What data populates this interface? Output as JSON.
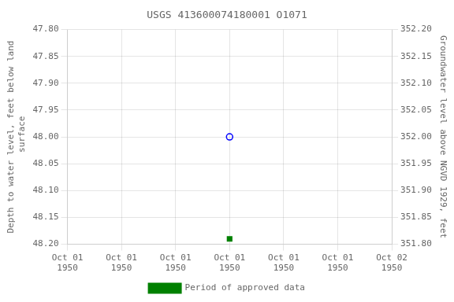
{
  "chart_data": {
    "type": "scatter",
    "title": "USGS 413600074180001 O1071",
    "categories": [
      "Oct 01\n1950",
      "Oct 01\n1950",
      "Oct 01\n1950",
      "Oct 01\n1950",
      "Oct 01\n1950",
      "Oct 01\n1950",
      "Oct 02\n1950"
    ],
    "series": [
      {
        "color": "blue",
        "marker": "circle_open",
        "values": [
          null,
          null,
          null,
          48.0,
          null,
          null,
          null
        ]
      },
      {
        "name": "Period of approved data",
        "color": "green",
        "marker": "square",
        "values": [
          null,
          null,
          null,
          48.19,
          null,
          null,
          null
        ]
      }
    ],
    "ylabel": "Depth to water level, feet below land\n surface",
    "y2label": "Groundwater level above NGVD 1929, feet",
    "ylim": [
      48.2,
      47.8
    ],
    "yticks": [
      {
        "value": 47.8,
        "label": "47.80"
      },
      {
        "value": 47.85,
        "label": "47.85"
      },
      {
        "value": 47.9,
        "label": "47.90"
      },
      {
        "value": 47.95,
        "label": "47.95"
      },
      {
        "value": 48.0,
        "label": "48.00"
      },
      {
        "value": 48.05,
        "label": "48.05"
      },
      {
        "value": 48.1,
        "label": "48.10"
      },
      {
        "value": 48.15,
        "label": "48.15"
      },
      {
        "value": 48.2,
        "label": "48.20"
      }
    ],
    "y2lim": [
      351.8,
      352.2
    ],
    "y2ticks": [
      {
        "value": 352.2,
        "label": "352.20"
      },
      {
        "value": 352.15,
        "label": "352.15"
      },
      {
        "value": 352.1,
        "label": "352.10"
      },
      {
        "value": 352.05,
        "label": "352.05"
      },
      {
        "value": 352.0,
        "label": "352.00"
      },
      {
        "value": 351.95,
        "label": "351.95"
      },
      {
        "value": 351.9,
        "label": "351.90"
      },
      {
        "value": 351.85,
        "label": "351.85"
      },
      {
        "value": 351.8,
        "label": "351.80"
      }
    ],
    "grid": true,
    "legend": "bottom"
  }
}
